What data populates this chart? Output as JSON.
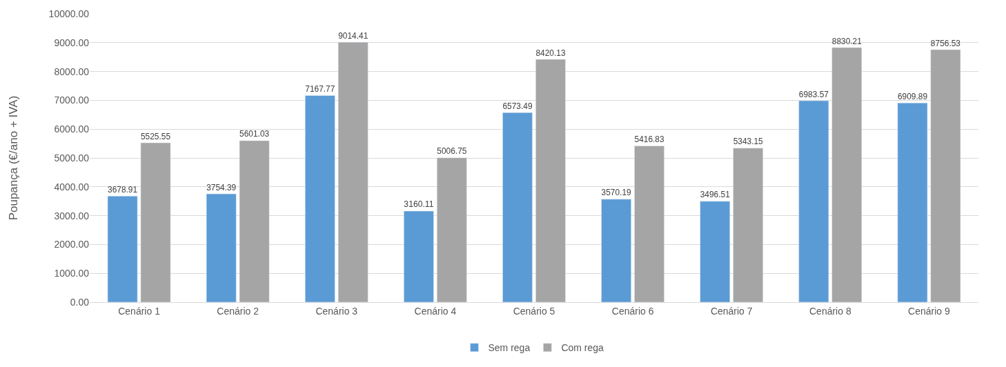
{
  "chart_data": {
    "type": "bar",
    "ylabel": "Poupança (€/ano + IVA)",
    "categories": [
      "Cenário 1",
      "Cenário 2",
      "Cenário 3",
      "Cenário 4",
      "Cenário 5",
      "Cenário 6",
      "Cenário 7",
      "Cenário 8",
      "Cenário 9"
    ],
    "series": [
      {
        "name": "Sem rega",
        "color": "#5b9bd5",
        "values": [
          3678.91,
          3754.39,
          7167.77,
          3160.11,
          6573.49,
          3570.19,
          3496.51,
          6983.57,
          6909.89
        ]
      },
      {
        "name": "Com rega",
        "color": "#a5a5a5",
        "values": [
          5525.55,
          5601.03,
          9014.41,
          5006.75,
          8420.13,
          5416.83,
          5343.15,
          8830.21,
          8756.53
        ]
      }
    ],
    "ylim": [
      0,
      10000
    ],
    "yticks": [
      {
        "value": 0,
        "label": "0.00"
      },
      {
        "value": 1000,
        "label": "1000.00"
      },
      {
        "value": 2000,
        "label": "2000.00"
      },
      {
        "value": 3000,
        "label": "3000.00"
      },
      {
        "value": 4000,
        "label": "4000.00"
      },
      {
        "value": 5000,
        "label": "5000.00"
      },
      {
        "value": 6000,
        "label": "6000.00"
      },
      {
        "value": 7000,
        "label": "7000.00"
      },
      {
        "value": 8000,
        "label": "8000.00"
      },
      {
        "value": 9000,
        "label": "9000.00"
      },
      {
        "value": 10000,
        "label": "10000.00"
      }
    ],
    "grid": "y",
    "legend": "bottom",
    "data_labels": true
  }
}
